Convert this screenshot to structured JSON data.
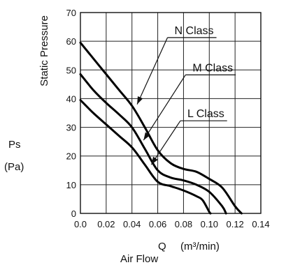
{
  "chart_data": {
    "type": "line",
    "x_label": "Q",
    "x_unit": "(m³/min)",
    "x_caption": "Air Flow",
    "y_label": "Ps",
    "y_unit": "(Pa)",
    "y_caption": "Static Pressure",
    "xlim": [
      0,
      0.14
    ],
    "ylim": [
      0,
      70
    ],
    "x_ticks": [
      "0.0",
      "0.02",
      "0.04",
      "0.06",
      "0.08",
      "0.10",
      "0.12",
      "0.14"
    ],
    "y_ticks": [
      "0",
      "10",
      "20",
      "30",
      "40",
      "50",
      "60",
      "70"
    ],
    "grid": true,
    "series": [
      {
        "name": "N Class",
        "label_data": [
          0.073,
          62.5
        ],
        "arrow_tip": [
          0.044,
          38
        ],
        "points": [
          [
            0,
            59.5
          ],
          [
            0.01,
            54
          ],
          [
            0.02,
            48.5
          ],
          [
            0.03,
            43
          ],
          [
            0.04,
            37.5
          ],
          [
            0.05,
            30
          ],
          [
            0.06,
            22
          ],
          [
            0.07,
            17.5
          ],
          [
            0.08,
            15.5
          ],
          [
            0.09,
            14.5
          ],
          [
            0.1,
            12
          ],
          [
            0.11,
            9
          ],
          [
            0.12,
            2.5
          ],
          [
            0.125,
            0
          ]
        ]
      },
      {
        "name": "M Class",
        "label_data": [
          0.087,
          49.5
        ],
        "arrow_tip": [
          0.049,
          25.5
        ],
        "points": [
          [
            0,
            48.5
          ],
          [
            0.01,
            43
          ],
          [
            0.02,
            38.5
          ],
          [
            0.03,
            34.5
          ],
          [
            0.04,
            30
          ],
          [
            0.05,
            22.5
          ],
          [
            0.06,
            15
          ],
          [
            0.07,
            12.5
          ],
          [
            0.08,
            11.5
          ],
          [
            0.09,
            10
          ],
          [
            0.1,
            7.5
          ],
          [
            0.11,
            2.5
          ],
          [
            0.113,
            0
          ]
        ]
      },
      {
        "name": "L Class",
        "label_data": [
          0.083,
          33.5
        ],
        "arrow_tip": [
          0.055,
          17
        ],
        "points": [
          [
            0,
            39.5
          ],
          [
            0.01,
            35
          ],
          [
            0.02,
            31
          ],
          [
            0.03,
            27
          ],
          [
            0.04,
            23
          ],
          [
            0.05,
            17
          ],
          [
            0.06,
            11
          ],
          [
            0.07,
            9.5
          ],
          [
            0.08,
            8
          ],
          [
            0.09,
            6
          ],
          [
            0.095,
            4.5
          ],
          [
            0.1,
            0.5
          ],
          [
            0.101,
            0
          ]
        ]
      }
    ]
  }
}
